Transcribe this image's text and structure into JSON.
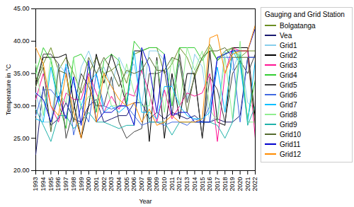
{
  "chart_data": {
    "type": "line",
    "title": "Gauging and Grid Station",
    "xlabel": "Year",
    "ylabel": "Temperature in °C",
    "x": [
      1993,
      1994,
      1995,
      1996,
      1997,
      1998,
      1999,
      2000,
      2001,
      2002,
      2003,
      2004,
      2005,
      2006,
      2007,
      2008,
      2009,
      2010,
      2011,
      2012,
      2013,
      2014,
      2015,
      2016,
      2017,
      2018,
      2019,
      2020,
      2021,
      2022
    ],
    "xlim": [
      1993,
      2022
    ],
    "xticks": [
      1993,
      1994,
      1995,
      1996,
      1997,
      1998,
      1999,
      2000,
      2001,
      2002,
      2003,
      2004,
      2005,
      2006,
      2007,
      2008,
      2009,
      2010,
      2011,
      2012,
      2013,
      2014,
      2015,
      2016,
      2017,
      2018,
      2019,
      2020,
      2021,
      2022
    ],
    "ylim": [
      20.0,
      45.0
    ],
    "yticks": [
      {
        "value": 20.0,
        "label": "20.00"
      },
      {
        "value": 25.0,
        "label": "25.00"
      },
      {
        "value": 30.0,
        "label": "30.00"
      },
      {
        "value": 35.0,
        "label": "35.00"
      },
      {
        "value": 40.0,
        "label": "40.00"
      },
      {
        "value": 45.0,
        "label": "45.00"
      }
    ],
    "grid": false,
    "legend": "right",
    "series": [
      {
        "name": "Bolgatanga",
        "color": "#6b8e23",
        "values": [
          34.0,
          36.5,
          39.0,
          35.5,
          37.5,
          35.0,
          32.0,
          35.0,
          37.5,
          35.0,
          35.5,
          36.5,
          33.5,
          38.0,
          38.5,
          39.0,
          39.0,
          35.0,
          36.5,
          39.0,
          37.5,
          34.5,
          37.5,
          39.5,
          37.0,
          38.5,
          39.0,
          37.5,
          38.5,
          38.5
        ]
      },
      {
        "name": "Vea",
        "color": "#191970",
        "values": [
          22.5,
          33.0,
          27.0,
          28.0,
          30.5,
          28.0,
          27.5,
          30.0,
          31.0,
          27.5,
          28.0,
          28.5,
          28.5,
          30.5,
          30.5,
          28.0,
          29.0,
          28.0,
          29.0,
          28.5,
          28.0,
          28.5,
          27.5,
          27.5,
          28.0,
          27.5,
          27.5,
          28.5,
          37.5,
          37.5
        ]
      },
      {
        "name": "Grid1",
        "color": "#87ceeb",
        "values": [
          32.0,
          27.5,
          27.5,
          36.5,
          35.0,
          29.0,
          36.0,
          38.5,
          35.0,
          36.0,
          33.0,
          37.5,
          35.0,
          36.5,
          30.0,
          38.5,
          38.5,
          37.0,
          33.0,
          36.5,
          31.0,
          38.0,
          36.0,
          27.5,
          28.5,
          38.5,
          35.5,
          38.5,
          30.5,
          29.5
        ]
      },
      {
        "name": "Grid2",
        "color": "#000000",
        "values": [
          33.5,
          37.5,
          37.5,
          37.5,
          38.0,
          30.5,
          25.0,
          30.0,
          38.0,
          33.5,
          38.0,
          34.5,
          30.0,
          38.5,
          38.5,
          24.5,
          37.5,
          25.0,
          35.0,
          28.0,
          35.0,
          35.0,
          25.0,
          38.5,
          27.5,
          27.0,
          39.0,
          39.0,
          39.0,
          28.0
        ]
      },
      {
        "name": "Grid3",
        "color": "#ff1493",
        "values": [
          31.0,
          35.0,
          30.0,
          27.5,
          32.0,
          31.0,
          31.0,
          35.0,
          32.0,
          29.0,
          31.5,
          29.5,
          32.0,
          31.5,
          35.5,
          32.0,
          27.5,
          32.5,
          28.0,
          30.0,
          32.0,
          31.5,
          32.0,
          35.0,
          24.5,
          35.0,
          39.0,
          38.5,
          38.5,
          25.0
        ]
      },
      {
        "name": "Grid4",
        "color": "#32cd32",
        "values": [
          35.0,
          39.0,
          37.0,
          30.5,
          26.5,
          37.5,
          38.0,
          36.0,
          29.0,
          37.0,
          38.0,
          37.0,
          30.5,
          40.0,
          38.5,
          39.0,
          39.0,
          38.0,
          30.0,
          39.0,
          39.0,
          39.0,
          37.0,
          39.0,
          37.0,
          38.0,
          39.0,
          37.0,
          28.0,
          34.0
        ]
      },
      {
        "name": "Grid5",
        "color": "#404040",
        "values": [
          33.0,
          38.0,
          38.0,
          36.5,
          25.0,
          29.5,
          35.0,
          33.0,
          30.0,
          30.0,
          34.5,
          27.5,
          25.0,
          26.0,
          26.5,
          35.0,
          35.0,
          35.5,
          28.5,
          38.0,
          30.5,
          34.5,
          25.0,
          34.5,
          32.5,
          27.5,
          35.0,
          37.0,
          35.0,
          38.0
        ]
      },
      {
        "name": "Grid6",
        "color": "#4169e1",
        "values": [
          28.5,
          32.5,
          32.5,
          31.0,
          36.0,
          25.5,
          30.0,
          27.5,
          35.0,
          30.0,
          29.5,
          30.0,
          30.0,
          28.5,
          27.0,
          27.5,
          27.5,
          27.0,
          27.5,
          27.5,
          27.0,
          28.0,
          27.5,
          30.0,
          37.5,
          37.5,
          37.5,
          27.5,
          37.5,
          37.5
        ]
      },
      {
        "name": "Grid7",
        "color": "#00bfff",
        "values": [
          28.0,
          27.5,
          36.0,
          30.5,
          36.5,
          33.5,
          30.0,
          33.5,
          35.0,
          29.0,
          30.0,
          29.0,
          30.0,
          38.5,
          29.0,
          29.0,
          28.0,
          33.0,
          33.0,
          30.0,
          28.5,
          28.0,
          28.0,
          29.0,
          36.0,
          29.0,
          38.5,
          36.5,
          27.5,
          37.0
        ]
      },
      {
        "name": "Grid8",
        "color": "#90ee90",
        "values": [
          36.5,
          28.5,
          37.5,
          32.0,
          30.5,
          37.5,
          29.5,
          31.5,
          30.5,
          35.0,
          30.0,
          30.0,
          36.5,
          32.0,
          30.0,
          30.0,
          37.0,
          29.0,
          37.5,
          30.0,
          39.0,
          35.5,
          38.5,
          29.5,
          27.5,
          37.5,
          28.0,
          40.0,
          27.5,
          27.5
        ]
      },
      {
        "name": "Grid9",
        "color": "#20b2aa",
        "values": [
          29.5,
          27.0,
          24.5,
          28.5,
          28.5,
          26.5,
          27.5,
          29.0,
          27.5,
          27.5,
          27.0,
          26.5,
          27.0,
          27.0,
          37.0,
          27.5,
          27.5,
          27.5,
          25.5,
          27.5,
          27.5,
          27.5,
          27.5,
          27.5,
          27.0,
          25.0,
          27.5,
          38.0,
          27.0,
          30.0
        ]
      },
      {
        "name": "Grid10",
        "color": "#556b2f",
        "values": [
          33.0,
          36.0,
          26.0,
          35.5,
          35.0,
          27.5,
          33.0,
          37.5,
          35.0,
          37.5,
          35.5,
          33.0,
          35.5,
          35.0,
          35.5,
          37.5,
          35.5,
          35.5,
          37.5,
          37.0,
          29.0,
          35.0,
          37.5,
          38.5,
          38.5,
          39.0,
          37.5,
          37.5,
          37.5,
          27.0
        ]
      },
      {
        "name": "Grid11",
        "color": "#0000cd",
        "values": [
          32.0,
          31.0,
          27.5,
          31.5,
          28.0,
          34.5,
          27.0,
          37.0,
          27.5,
          29.0,
          29.0,
          30.0,
          30.0,
          27.0,
          39.0,
          36.0,
          29.0,
          38.0,
          28.5,
          29.0,
          29.0,
          27.5,
          27.5,
          27.5,
          37.5,
          38.0,
          38.5,
          38.5,
          38.5,
          42.0
        ]
      },
      {
        "name": "Grid12",
        "color": "#ff8c00",
        "values": [
          39.0,
          36.5,
          30.0,
          28.5,
          35.0,
          29.0,
          25.0,
          34.5,
          27.5,
          35.0,
          33.0,
          31.0,
          30.0,
          30.5,
          27.5,
          29.5,
          27.0,
          27.5,
          28.5,
          27.5,
          27.5,
          27.5,
          28.0,
          40.5,
          41.0,
          35.0,
          38.0,
          38.5,
          38.5,
          42.5
        ]
      }
    ]
  }
}
